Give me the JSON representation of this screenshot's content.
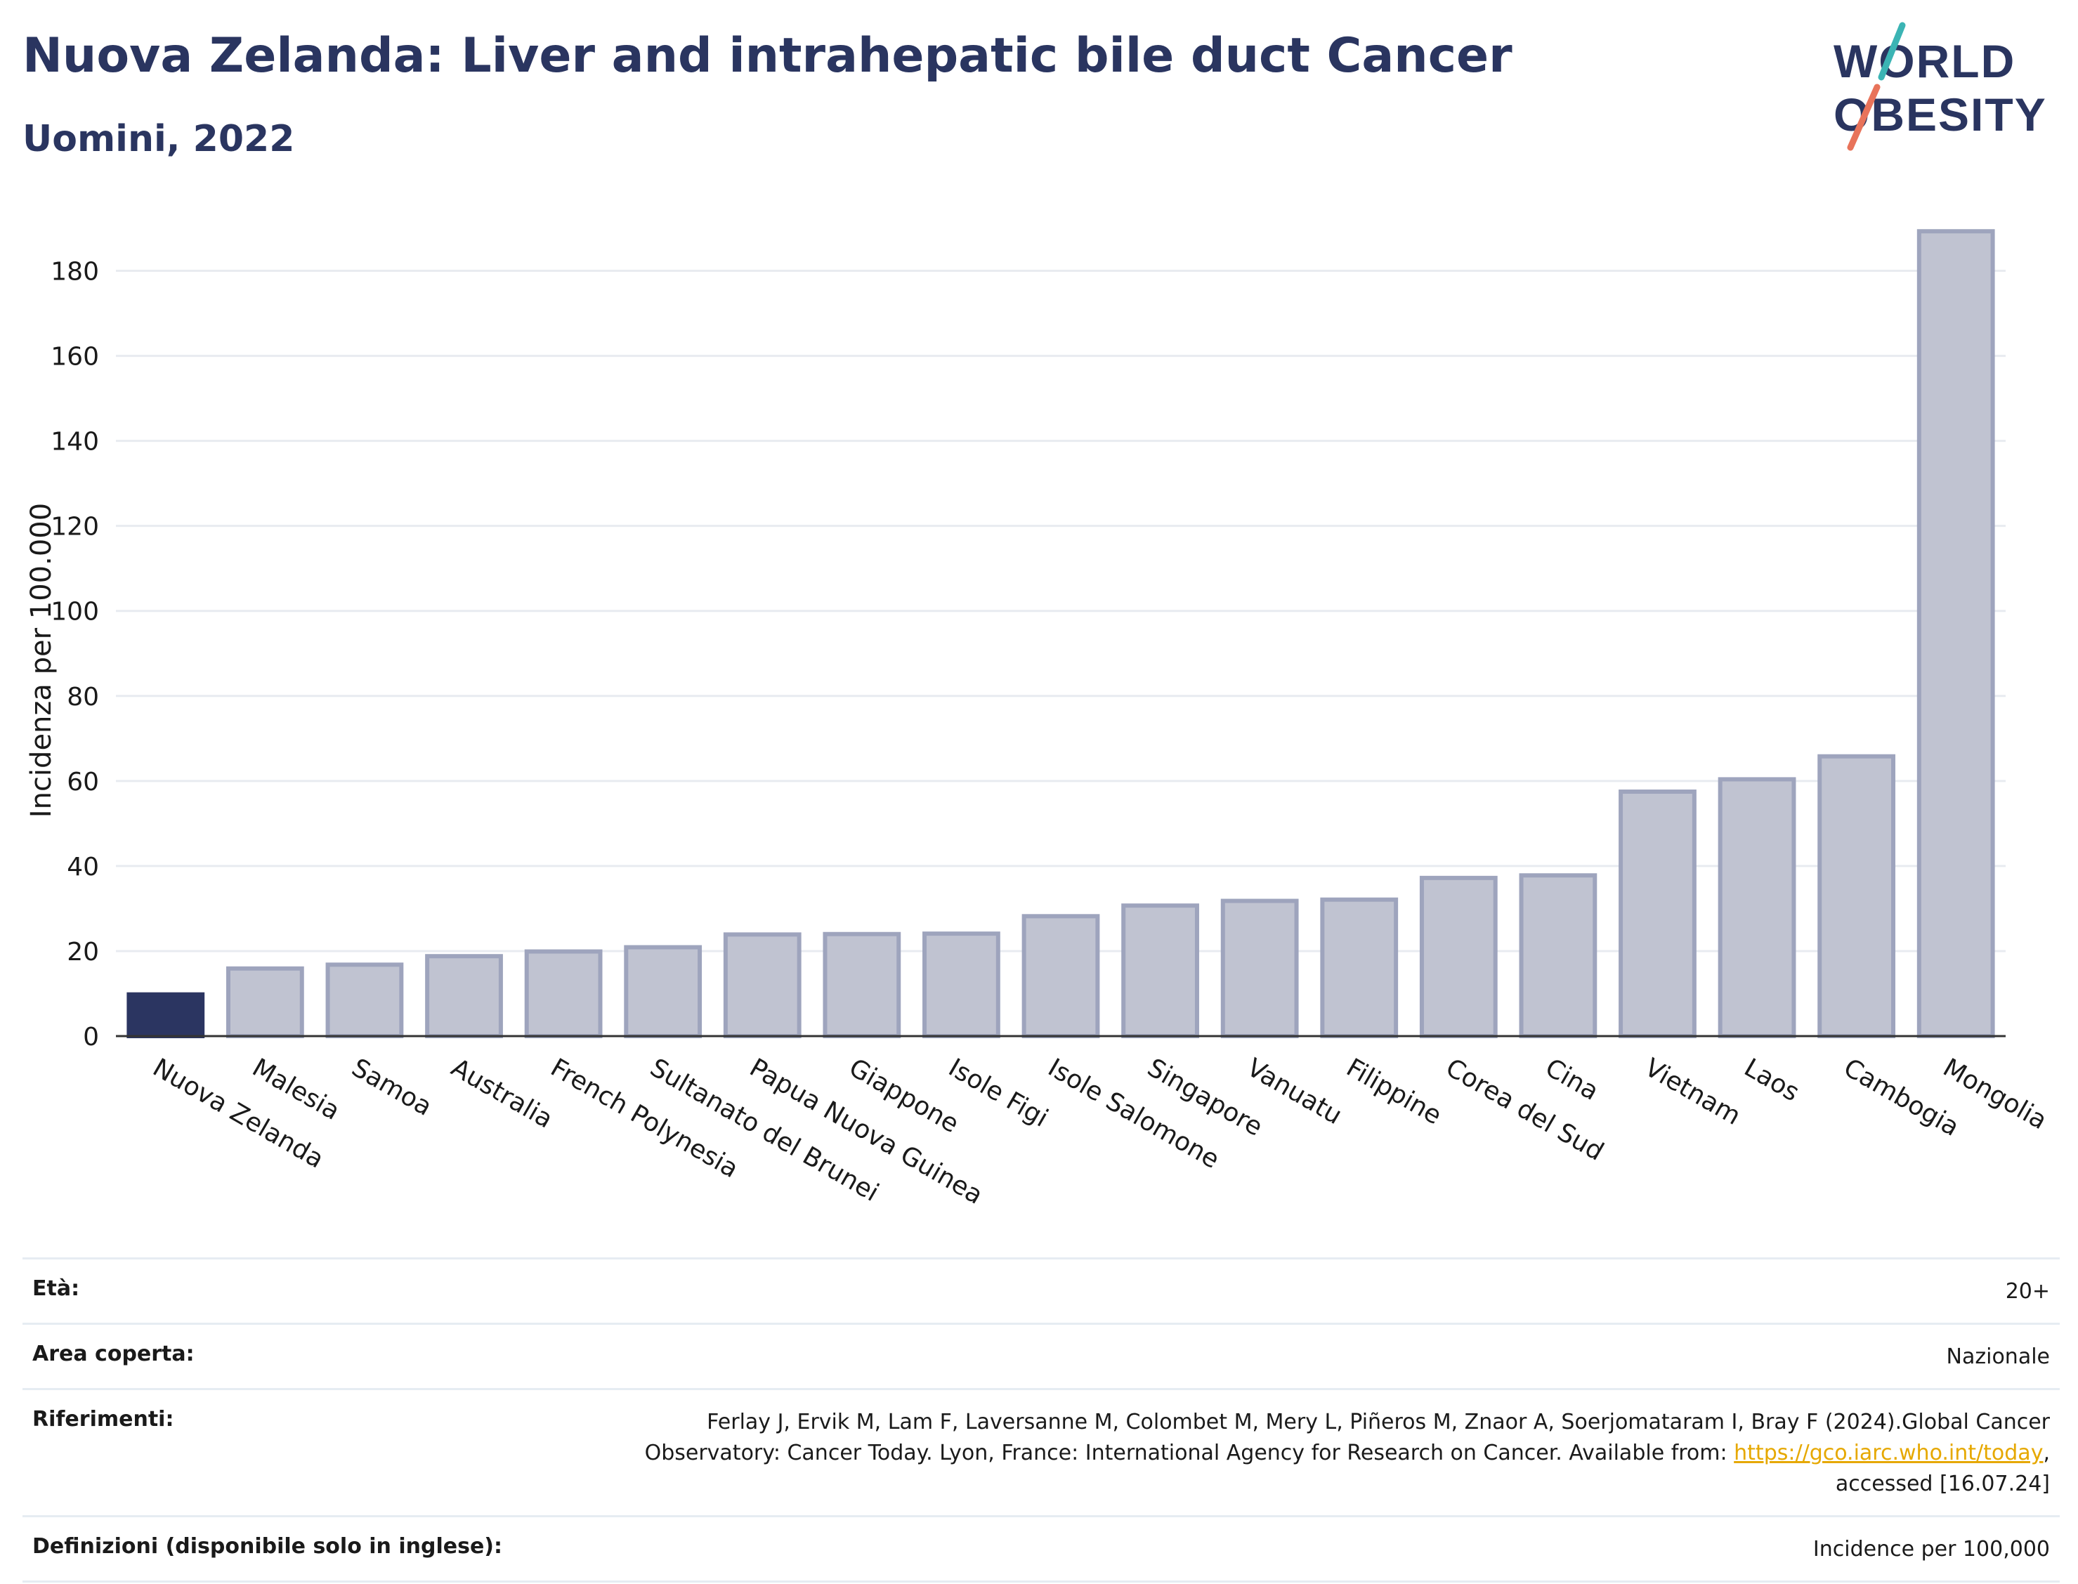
{
  "header": {
    "title": "Nuova Zelanda: Liver and intrahepatic bile duct Cancer",
    "subtitle": "Uomini, 2022"
  },
  "logo": {
    "line1": "WORLD",
    "line2": "OBESITY"
  },
  "colors": {
    "highlight": "#2b3561",
    "bar": "#c0c3d1",
    "bar_edge": "#9ea4bd",
    "title": "#2a3560"
  },
  "chart_data": {
    "type": "bar",
    "title": "Nuova Zelanda: Liver and intrahepatic bile duct Cancer",
    "subtitle": "Uomini, 2022",
    "xlabel": "",
    "ylabel": "Incidenza per 100.000",
    "ylim": [
      0,
      190
    ],
    "yticks": [
      0,
      20,
      40,
      60,
      80,
      100,
      120,
      140,
      160,
      180
    ],
    "grid": true,
    "highlight_category": "Nuova Zelanda",
    "categories": [
      "Nuova Zelanda",
      "Malesia",
      "Samoa",
      "Australia",
      "French Polynesia",
      "Sultanato del Brunei",
      "Papua Nuova Guinea",
      "Giappone",
      "Isole Figi",
      "Isole Salomone",
      "Singapore",
      "Vanuatu",
      "Filippine",
      "Corea del Sud",
      "Cina",
      "Vietnam",
      "Laos",
      "Cambogia",
      "Mongolia"
    ],
    "values": [
      9.8,
      15.9,
      16.8,
      18.8,
      19.9,
      20.9,
      23.9,
      24.0,
      24.1,
      28.2,
      30.7,
      31.8,
      32.1,
      37.2,
      37.8,
      57.5,
      60.4,
      65.8,
      189.3
    ]
  },
  "footer": {
    "age_label": "Età:",
    "age_value": "20+",
    "area_label": "Area coperta:",
    "area_value": "Nazionale",
    "ref_label": "Riferimenti:",
    "ref_line1": "Ferlay J, Ervik M, Lam F, Laversanne M, Colombet M, Mery L, Piñeros M, Znaor A, Soerjomataram I, Bray F (2024).Global Cancer",
    "ref_line2_prefix": "Observatory: Cancer Today. Lyon, France: International Agency for Research on Cancer. Available from: ",
    "ref_link": "https://gco.iarc.who.int/today",
    "ref_line2_suffix": ",",
    "ref_line3": "accessed [16.07.24]",
    "def_label": "Definizioni (disponibile solo in inglese):",
    "def_value": "Incidence per 100,000"
  }
}
